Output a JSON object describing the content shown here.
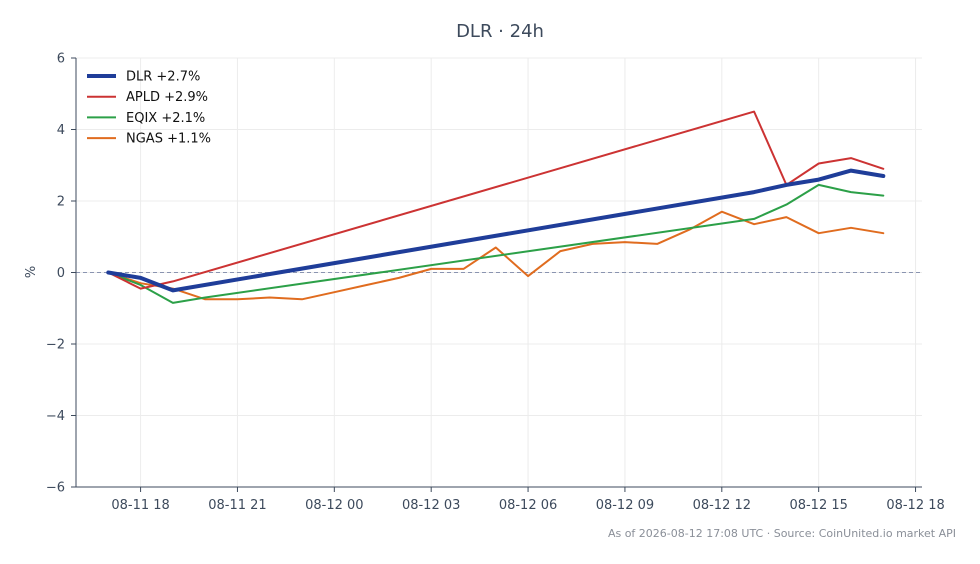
{
  "chart_data": {
    "type": "line",
    "title": "DLR · 24h",
    "xlabel": "",
    "ylabel": "%",
    "x_ticks": [
      "08-11 18",
      "08-11 21",
      "08-12 00",
      "08-12 03",
      "08-12 06",
      "08-12 09",
      "08-12 12",
      "08-12 15",
      "08-12 18"
    ],
    "x_range": [
      "2026-08-11 16:00",
      "2026-08-12 18:12"
    ],
    "ylim": [
      -6,
      6
    ],
    "y_ticks": [
      6,
      4,
      2,
      0,
      -2,
      -4,
      -6
    ],
    "y_tick_labels": [
      "6",
      "4",
      "2",
      "0",
      "−2",
      "−4",
      "−6"
    ],
    "baseline": 0,
    "grid": true,
    "legend_position": "top-left",
    "series": [
      {
        "name": "DLR +2.7%",
        "color": "#1f3d99",
        "x": [
          "2026-08-11 17:00",
          "2026-08-11 18:00",
          "2026-08-11 19:00",
          "2026-08-12 13:00",
          "2026-08-12 14:00",
          "2026-08-12 15:00",
          "2026-08-12 16:00",
          "2026-08-12 17:00"
        ],
        "values": [
          0.0,
          -0.15,
          -0.5,
          2.25,
          2.45,
          2.6,
          2.85,
          2.7
        ]
      },
      {
        "name": "APLD +2.9%",
        "color": "#cc3333",
        "x": [
          "2026-08-11 17:00",
          "2026-08-11 18:00",
          "2026-08-11 19:00",
          "2026-08-12 13:00",
          "2026-08-12 14:00",
          "2026-08-12 15:00",
          "2026-08-12 16:00",
          "2026-08-12 17:00"
        ],
        "values": [
          0.0,
          -0.45,
          -0.25,
          4.5,
          2.45,
          3.05,
          3.2,
          2.9
        ]
      },
      {
        "name": "EQIX +2.1%",
        "color": "#2ca048",
        "x": [
          "2026-08-11 17:00",
          "2026-08-11 18:00",
          "2026-08-11 19:00",
          "2026-08-11 20:00",
          "2026-08-12 13:00",
          "2026-08-12 14:00",
          "2026-08-12 15:00",
          "2026-08-12 16:00",
          "2026-08-12 17:00"
        ],
        "values": [
          0.0,
          -0.35,
          -0.85,
          -0.7,
          1.5,
          1.9,
          2.45,
          2.25,
          2.15
        ]
      },
      {
        "name": "NGAS +1.1%",
        "color": "#e06c1f",
        "x": [
          "2026-08-11 17:00",
          "2026-08-11 18:00",
          "2026-08-11 19:00",
          "2026-08-11 20:00",
          "2026-08-11 21:00",
          "2026-08-11 22:00",
          "2026-08-11 23:00",
          "2026-08-12 00:00",
          "2026-08-12 01:00",
          "2026-08-12 02:00",
          "2026-08-12 03:00",
          "2026-08-12 04:00",
          "2026-08-12 05:00",
          "2026-08-12 06:00",
          "2026-08-12 07:00",
          "2026-08-12 08:00",
          "2026-08-12 09:00",
          "2026-08-12 10:00",
          "2026-08-12 11:00",
          "2026-08-12 12:00",
          "2026-08-12 13:00",
          "2026-08-12 14:00",
          "2026-08-12 15:00",
          "2026-08-12 16:00",
          "2026-08-12 17:00"
        ],
        "values": [
          0.0,
          -0.3,
          -0.45,
          -0.75,
          -0.75,
          -0.7,
          -0.75,
          -0.55,
          -0.35,
          -0.15,
          0.1,
          0.1,
          0.7,
          -0.1,
          0.6,
          0.8,
          0.85,
          0.8,
          1.2,
          1.7,
          1.35,
          1.55,
          1.1,
          1.25,
          1.1
        ]
      }
    ],
    "footer": "As of 2026-08-12 17:08 UTC · Source: CoinUnited.io market API"
  }
}
